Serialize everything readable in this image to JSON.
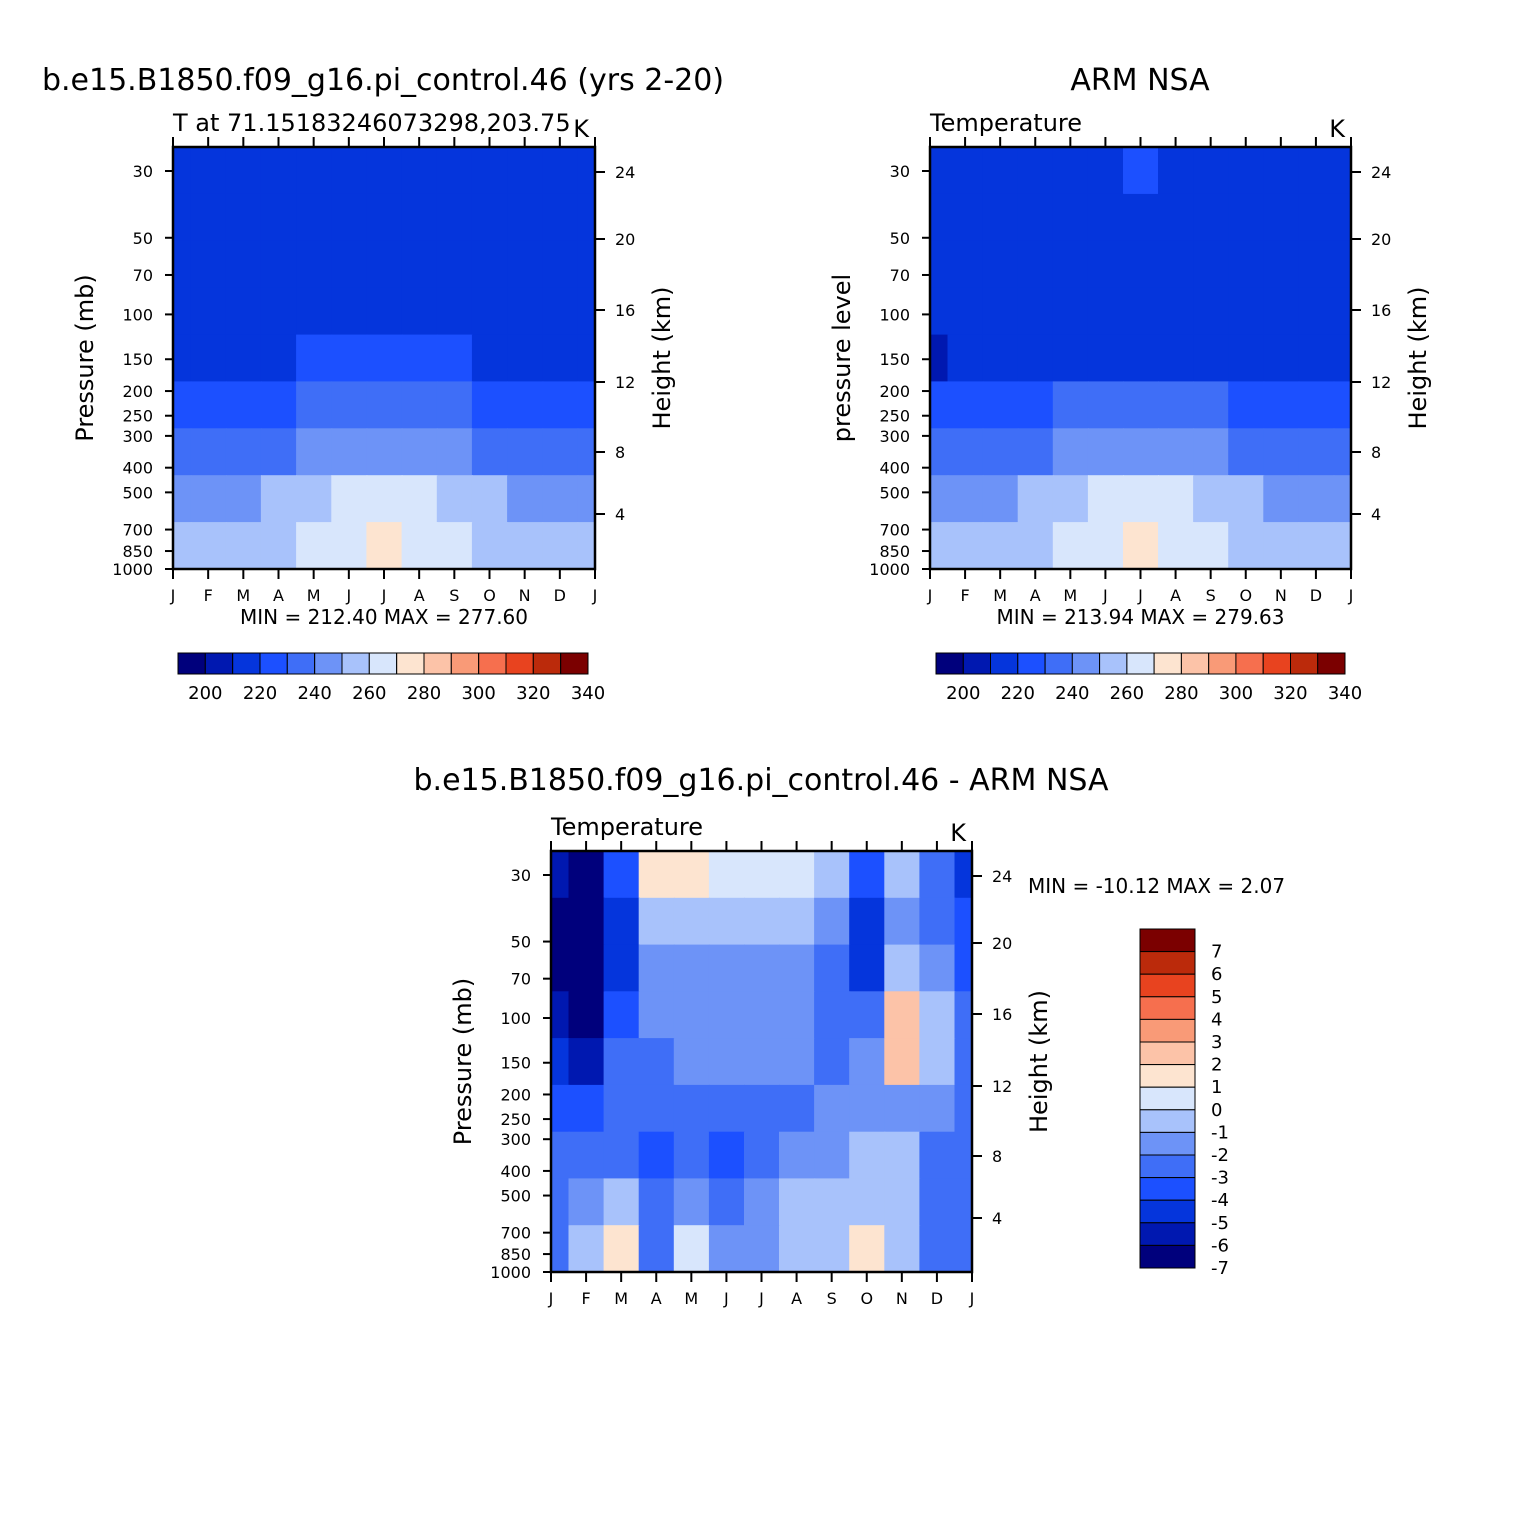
{
  "chart_data": [
    {
      "type": "heatmap",
      "title": "b.e15.B1850.f09_g16.pi_control.46 (yrs 2-20)",
      "subtitle_left": "T at 71.15183246073298,203.75",
      "subtitle_right": "K",
      "xlabel": "",
      "ylabel": "Pressure (mb)",
      "ylabel_right": "Height (km)",
      "x_ticks": [
        "J",
        "F",
        "M",
        "A",
        "M",
        "J",
        "J",
        "A",
        "S",
        "O",
        "N",
        "D",
        "J"
      ],
      "y_ticks": [
        30,
        50,
        70,
        100,
        150,
        200,
        250,
        300,
        400,
        500,
        700,
        850,
        1000
      ],
      "y_scale": "log",
      "right_ticks": [
        24,
        20,
        16,
        12,
        8,
        4
      ],
      "stats": "MIN = 212.40 MAX = 277.60",
      "colorbar_labels": [
        200,
        220,
        240,
        260,
        280,
        300,
        320,
        340
      ],
      "colorbar_orientation": "horizontal",
      "values_rows_top_to_bottom_by_month": [
        [
          215,
          215,
          221,
          221,
          221,
          222,
          223,
          221,
          221,
          215,
          215,
          215,
          215
        ],
        [
          215,
          215,
          221,
          221,
          221,
          221,
          221,
          221,
          215,
          215,
          215,
          215,
          215
        ],
        [
          215,
          215,
          215,
          221,
          221,
          221,
          221,
          221,
          215,
          215,
          215,
          215,
          215
        ],
        [
          215,
          215,
          215,
          215,
          221,
          221,
          221,
          221,
          215,
          215,
          215,
          215,
          215
        ],
        [
          221,
          221,
          221,
          221,
          225,
          228,
          230,
          228,
          225,
          221,
          221,
          221,
          221
        ],
        [
          228,
          228,
          229,
          232,
          236,
          239,
          241,
          239,
          236,
          232,
          229,
          228,
          228
        ],
        [
          240,
          240,
          241,
          244,
          248,
          252,
          254,
          252,
          248,
          244,
          241,
          240,
          240
        ],
        [
          252,
          252,
          253,
          256,
          261,
          266,
          269,
          266,
          261,
          256,
          253,
          252,
          252
        ],
        [
          260,
          260,
          261,
          263,
          268,
          273,
          276,
          273,
          268,
          263,
          261,
          260,
          260
        ]
      ]
    },
    {
      "type": "heatmap",
      "title": "ARM NSA",
      "subtitle_left": "Temperature",
      "subtitle_right": "K",
      "xlabel": "",
      "ylabel": "pressure level",
      "ylabel_right": "Height (km)",
      "x_ticks": [
        "J",
        "F",
        "M",
        "A",
        "M",
        "J",
        "J",
        "A",
        "S",
        "O",
        "N",
        "D",
        "J"
      ],
      "y_ticks": [
        30,
        50,
        70,
        100,
        150,
        200,
        250,
        300,
        400,
        500,
        700,
        850,
        1000
      ],
      "y_scale": "log",
      "right_ticks": [
        24,
        20,
        16,
        12,
        8,
        4
      ],
      "stats": "MIN = 213.94 MAX = 279.63",
      "colorbar_labels": [
        200,
        220,
        240,
        260,
        280,
        300,
        320,
        340
      ],
      "colorbar_orientation": "horizontal",
      "values_rows_top_to_bottom_by_month": [
        [
          221,
          221,
          221,
          222,
          223,
          224,
          226,
          224,
          223,
          221,
          215,
          215,
          221
        ],
        [
          221,
          221,
          221,
          221,
          222,
          223,
          224,
          223,
          222,
          221,
          215,
          215,
          221
        ],
        [
          221,
          221,
          221,
          221,
          221,
          222,
          222,
          222,
          221,
          221,
          215,
          215,
          215
        ],
        [
          215,
          221,
          221,
          221,
          221,
          221,
          221,
          221,
          221,
          221,
          215,
          215,
          215
        ],
        [
          214,
          215,
          221,
          221,
          221,
          221,
          221,
          221,
          221,
          215,
          215,
          215,
          215
        ],
        [
          226,
          227,
          229,
          232,
          236,
          239,
          241,
          239,
          236,
          232,
          229,
          227,
          226
        ],
        [
          238,
          239,
          240,
          243,
          247,
          251,
          254,
          251,
          247,
          243,
          240,
          239,
          238
        ],
        [
          251,
          252,
          253,
          256,
          261,
          266,
          269,
          266,
          261,
          256,
          253,
          252,
          251
        ],
        [
          259,
          259,
          260,
          263,
          268,
          274,
          278,
          274,
          268,
          263,
          260,
          259,
          259
        ]
      ]
    },
    {
      "type": "heatmap",
      "title": "b.e15.B1850.f09_g16.pi_control.46 - ARM NSA",
      "subtitle_left": "Temperature",
      "subtitle_right": "K",
      "xlabel": "",
      "ylabel": "Pressure (mb)",
      "ylabel_right": "Height (km)",
      "x_ticks": [
        "J",
        "F",
        "M",
        "A",
        "M",
        "J",
        "J",
        "A",
        "S",
        "O",
        "N",
        "D",
        "J"
      ],
      "y_ticks": [
        30,
        50,
        70,
        100,
        150,
        200,
        250,
        300,
        400,
        500,
        700,
        850,
        1000
      ],
      "y_scale": "log",
      "right_ticks": [
        24,
        20,
        16,
        12,
        8,
        4
      ],
      "stats": "MIN = -10.12 MAX =    2.07",
      "colorbar_labels": [
        7,
        6,
        5,
        4,
        3,
        2,
        1,
        0,
        "-1",
        "-2",
        "-3",
        "-4",
        "-5",
        "-6",
        "-7"
      ],
      "colorbar_orientation": "vertical",
      "values_rows_top_to_bottom_by_month": [
        [
          -6.5,
          -7.5,
          -4.5,
          0.5,
          0.5,
          0.3,
          0.3,
          -0.5,
          -1.5,
          -4.5,
          -1.5,
          -3.5,
          -5.0
        ],
        [
          -7.5,
          -8.5,
          -5.5,
          -1.0,
          -0.8,
          -0.8,
          -0.8,
          -1.5,
          -2.5,
          -5.5,
          -2.0,
          -3.0,
          -4.5
        ],
        [
          -7.0,
          -8.5,
          -5.0,
          -2.0,
          -2.0,
          -2.0,
          -2.0,
          -2.5,
          -3.0,
          -5.0,
          -1.5,
          -2.5,
          -4.0
        ],
        [
          -6.0,
          -7.5,
          -4.5,
          -2.5,
          -2.5,
          -2.5,
          -2.5,
          -2.5,
          -3.0,
          -3.5,
          1.5,
          -1.5,
          -3.5
        ],
        [
          -5.0,
          -6.0,
          -3.5,
          -3.0,
          -2.5,
          -2.5,
          -2.5,
          -2.5,
          -3.0,
          -2.5,
          1.5,
          -1.5,
          -3.5
        ],
        [
          -4.0,
          -4.5,
          -3.5,
          -3.5,
          -3.5,
          -3.0,
          -3.0,
          -3.0,
          -2.5,
          -2.0,
          -2.0,
          -2.5,
          -3.5
        ],
        [
          -3.5,
          -3.0,
          -3.0,
          -4.5,
          -3.0,
          -4.5,
          -3.0,
          -2.5,
          -2.0,
          -0.8,
          -1.5,
          -3.5,
          -3.5
        ],
        [
          -3.0,
          -2.0,
          -1.5,
          -3.5,
          -2.0,
          -3.5,
          -2.0,
          -1.5,
          -1.5,
          -0.8,
          -1.0,
          -3.0,
          -3.5
        ],
        [
          -3.5,
          -1.5,
          0.5,
          -3.0,
          -0.5,
          -2.5,
          -2.5,
          -1.5,
          -1.5,
          0.5,
          -1.5,
          -3.0,
          -3.5
        ]
      ]
    }
  ],
  "colors": {
    "abs_palette": [
      "#00007c",
      "#0018b0",
      "#0535dc",
      "#1c50ff",
      "#3f6ef7",
      "#6d93f7",
      "#a8c2fb",
      "#d8e6fc",
      "#fde4d0",
      "#fcc3a8",
      "#f99a77",
      "#f66f4e",
      "#e8431f",
      "#bb2a0b",
      "#7b0000"
    ],
    "diff_palette": [
      "#00007c",
      "#0018b0",
      "#0535dc",
      "#1c50ff",
      "#3f6ef7",
      "#6d93f7",
      "#a8c2fb",
      "#d8e6fc",
      "#fde4d0",
      "#fcc3a8",
      "#f99a77",
      "#f66f4e",
      "#e8431f",
      "#bb2a0b",
      "#7b0000"
    ]
  }
}
